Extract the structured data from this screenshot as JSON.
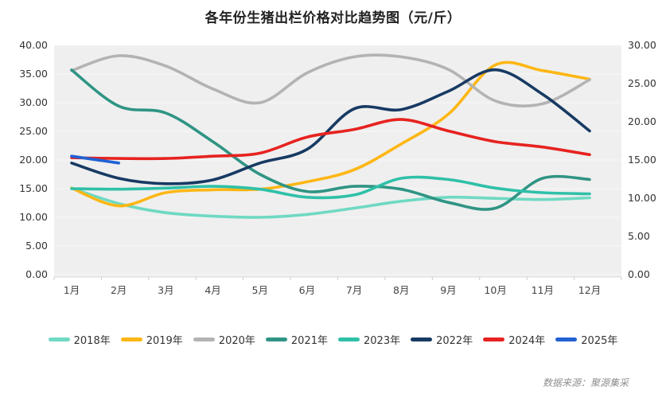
{
  "title": "各年份生猪出栏价格对比趋势图（元/斤）",
  "source_note": "数据来源：聚源集采",
  "chart_data": {
    "type": "line",
    "x_categories": [
      "1月",
      "2月",
      "3月",
      "4月",
      "5月",
      "6月",
      "7月",
      "8月",
      "9月",
      "10月",
      "11月",
      "12月"
    ],
    "axes": {
      "left": {
        "min": 0,
        "max": 40,
        "tick_step": 5,
        "tick_labels": [
          "40.00",
          "35.00",
          "30.00",
          "25.00",
          "20.00",
          "15.00",
          "10.00",
          "5.00",
          "0.00"
        ]
      },
      "right": {
        "min": 0,
        "max": 30,
        "tick_step": 5,
        "tick_labels": [
          "30.00",
          "25.00",
          "20.00",
          "15.00",
          "10.00",
          "5.00",
          "0.00"
        ]
      }
    },
    "grid": true,
    "legend_position": "bottom",
    "plot_background": "#efefef",
    "series": [
      {
        "name": "2018年",
        "color": "#6fd9c3",
        "axis": "left",
        "values": [
          15.1,
          12.4,
          10.8,
          10.2,
          10.0,
          10.5,
          11.6,
          12.8,
          13.5,
          13.3,
          13.1,
          13.4
        ]
      },
      {
        "name": "2019年",
        "color": "#fdb714",
        "axis": "left",
        "values": [
          15.1,
          12.0,
          14.3,
          14.8,
          14.9,
          16.2,
          18.3,
          22.8,
          28.0,
          36.6,
          35.6,
          34.1
        ]
      },
      {
        "name": "2020年",
        "color": "#b3b3b3",
        "axis": "left",
        "values": [
          35.6,
          38.2,
          36.4,
          32.4,
          30.0,
          35.2,
          38.0,
          38.0,
          35.8,
          30.3,
          29.8,
          34.0
        ]
      },
      {
        "name": "2021年",
        "color": "#2f9484",
        "axis": "left",
        "values": [
          35.7,
          29.4,
          28.2,
          23.2,
          17.5,
          14.5,
          15.4,
          14.9,
          12.6,
          11.6,
          16.8,
          16.6
        ]
      },
      {
        "name": "2023年",
        "color": "#2fc0a8",
        "axis": "left",
        "values": [
          15.0,
          14.9,
          15.1,
          15.4,
          14.9,
          13.5,
          13.9,
          16.8,
          16.6,
          15.1,
          14.3,
          14.1
        ]
      },
      {
        "name": "2022年",
        "color": "#173a63",
        "axis": "right",
        "values": [
          14.6,
          12.6,
          11.9,
          12.4,
          14.6,
          16.4,
          21.7,
          21.6,
          24.0,
          26.8,
          23.6,
          18.8
        ]
      },
      {
        "name": "2024年",
        "color": "#e62320",
        "axis": "right",
        "values": [
          15.3,
          15.2,
          15.2,
          15.5,
          15.9,
          18.0,
          19.0,
          20.3,
          18.8,
          17.4,
          16.7,
          15.7
        ]
      },
      {
        "name": "2025年",
        "color": "#2261d3",
        "axis": "right",
        "values": [
          15.5,
          14.6
        ]
      }
    ]
  }
}
